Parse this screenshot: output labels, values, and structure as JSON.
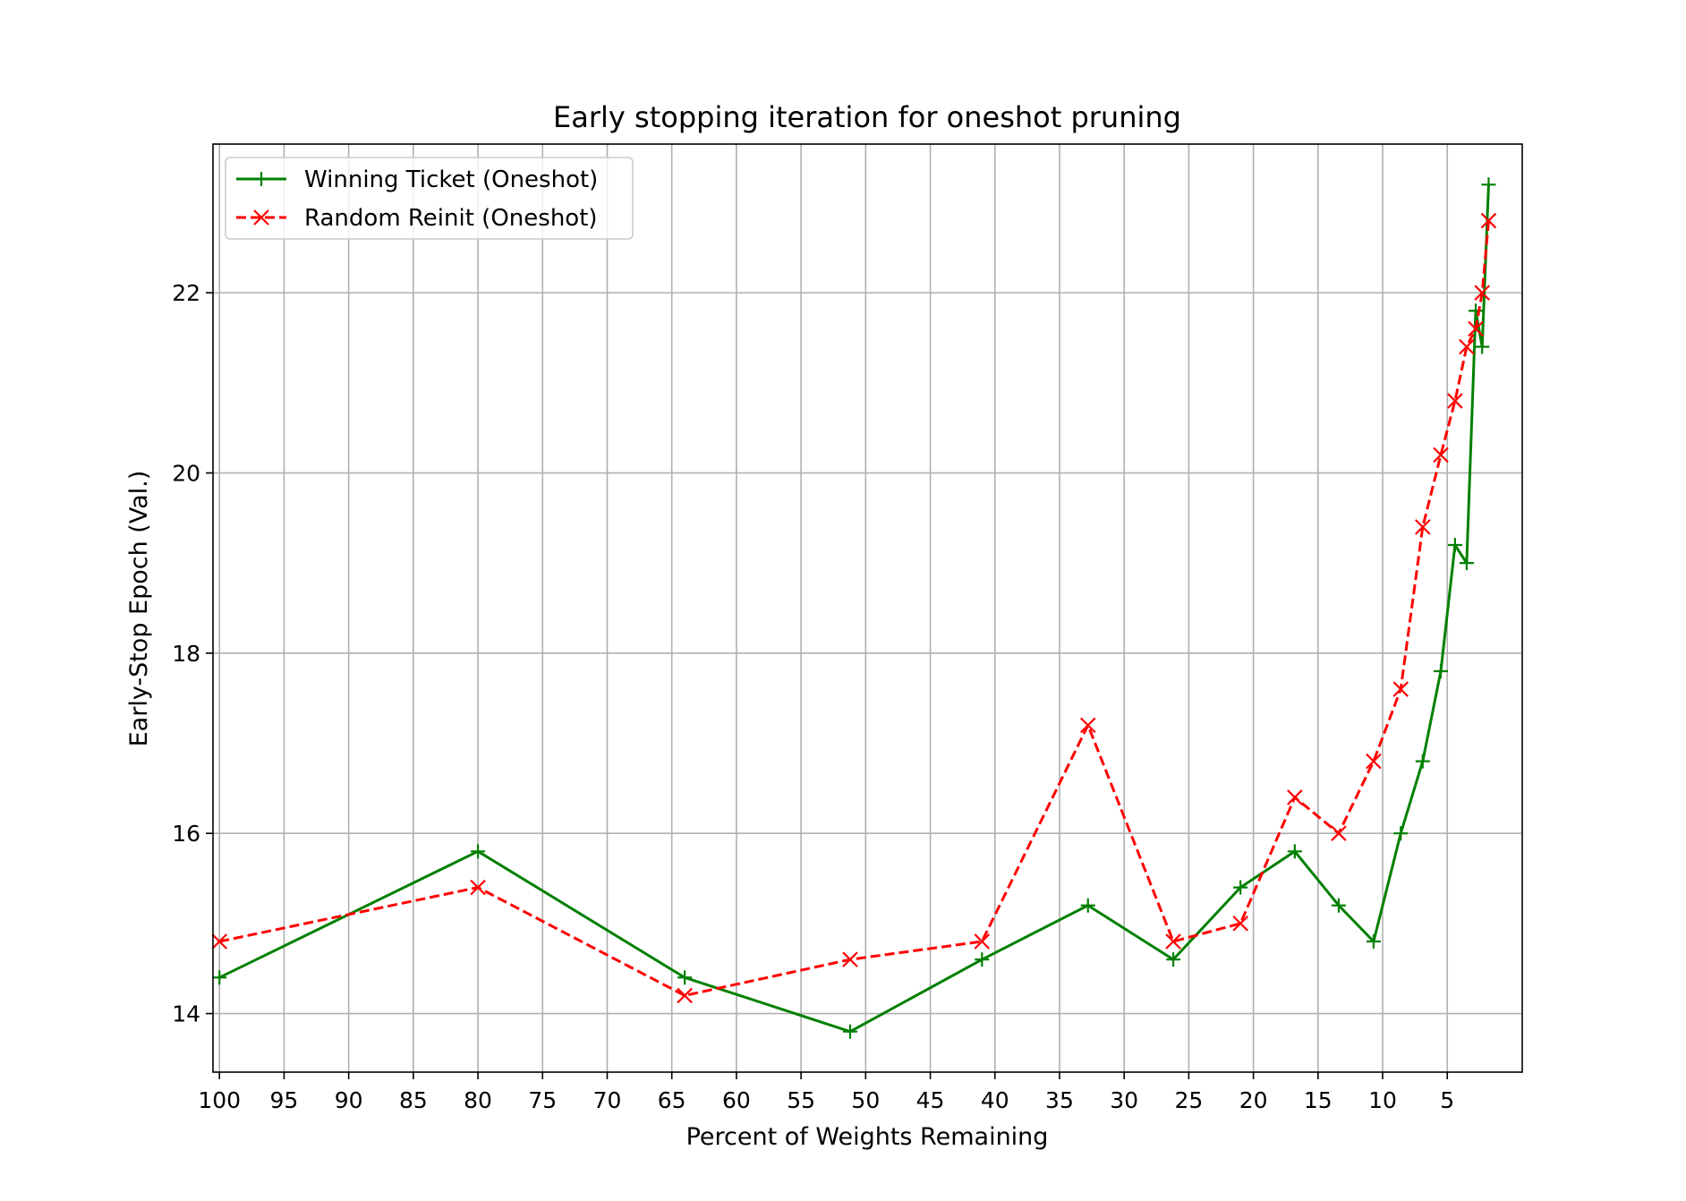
{
  "chart_data": {
    "type": "line",
    "title": "Early stopping iteration for oneshot pruning",
    "xlabel": "Percent of Weights Remaining",
    "ylabel": "Early-Stop Epoch (Val.)",
    "xlim": [
      100.5,
      -0.8
    ],
    "ylim": [
      13.35,
      23.65
    ],
    "x_reversed": true,
    "xticks": [
      100,
      95,
      90,
      85,
      80,
      75,
      70,
      65,
      60,
      55,
      50,
      45,
      40,
      35,
      30,
      25,
      20,
      15,
      10,
      5
    ],
    "yticks": [
      14,
      16,
      18,
      20,
      22
    ],
    "grid": true,
    "legend_position": "top-left",
    "series": [
      {
        "name": "Winning Ticket (Oneshot)",
        "color": "#008000",
        "line_style": "solid",
        "marker": "plus",
        "x": [
          100,
          80,
          64,
          51.2,
          41,
          32.8,
          26.2,
          21,
          16.8,
          13.4,
          10.7,
          8.6,
          6.9,
          5.5,
          4.4,
          3.5,
          2.8,
          2.3,
          1.8
        ],
        "y": [
          14.4,
          15.8,
          14.4,
          13.8,
          14.6,
          15.2,
          14.6,
          15.4,
          15.8,
          15.2,
          14.8,
          16.0,
          16.8,
          17.8,
          19.2,
          19.0,
          21.8,
          21.4,
          23.2
        ]
      },
      {
        "name": "Random Reinit (Oneshot)",
        "color": "#ff0000",
        "line_style": "dashed",
        "marker": "x",
        "x": [
          100,
          80,
          64,
          51.2,
          41,
          32.8,
          26.2,
          21,
          16.8,
          13.4,
          10.7,
          8.6,
          6.9,
          5.5,
          4.4,
          3.5,
          2.8,
          2.3,
          1.8
        ],
        "y": [
          14.8,
          15.4,
          14.2,
          14.6,
          14.8,
          17.2,
          14.8,
          15.0,
          16.4,
          16.0,
          16.8,
          17.6,
          19.4,
          20.2,
          20.8,
          21.4,
          21.6,
          22.0,
          22.8
        ]
      }
    ]
  }
}
